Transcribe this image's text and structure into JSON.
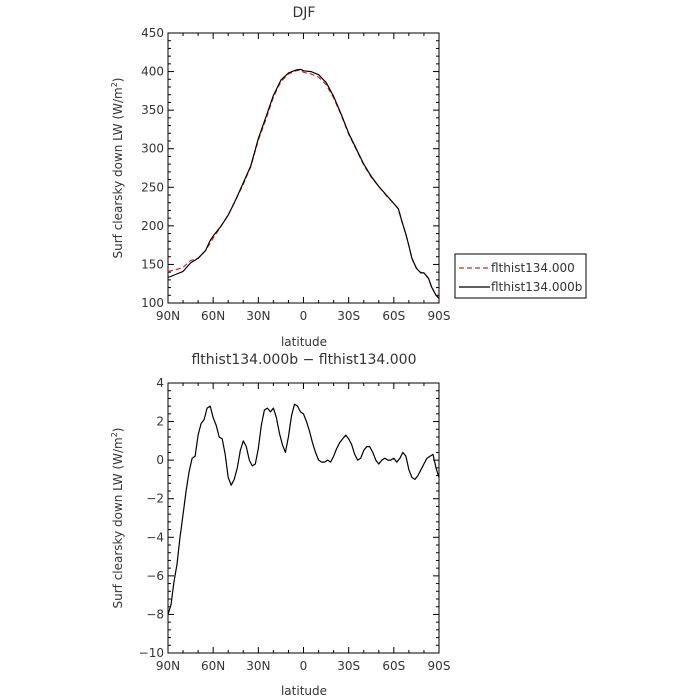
{
  "chart_data": [
    {
      "type": "line",
      "title": "DJF",
      "xlabel": "latitude",
      "ylabel": "Surf clearsky down LW (W/m²)",
      "ylabel_main": "Surf clearsky down LW (W/m",
      "ylabel_sup": "2",
      "ylabel_close": ")",
      "xlim": [
        90,
        -90
      ],
      "ylim": [
        100,
        450
      ],
      "x_ticks": [
        90,
        60,
        30,
        0,
        -30,
        -60,
        -90
      ],
      "x_tick_labels": [
        "90N",
        "60N",
        "30N",
        "0",
        "30S",
        "60S",
        "90S"
      ],
      "y_ticks": [
        100,
        150,
        200,
        250,
        300,
        350,
        400,
        450
      ],
      "y_tick_labels": [
        "100",
        "150",
        "200",
        "250",
        "300",
        "350",
        "400",
        "450"
      ],
      "legend_position": "right",
      "series": [
        {
          "name": "flthist134.000",
          "color": "#dd2222",
          "style": "dashed",
          "x": [
            90,
            85,
            80,
            75,
            70,
            65,
            62,
            60,
            55,
            50,
            45,
            40,
            35,
            30,
            25,
            20,
            15,
            10,
            5,
            2,
            0,
            -5,
            -10,
            -15,
            -20,
            -25,
            -30,
            -35,
            -40,
            -45,
            -50,
            -55,
            -60,
            -63,
            -65,
            -68,
            -70,
            -72,
            -75,
            -78,
            -80,
            -83,
            -85,
            -88,
            -90
          ],
          "y": [
            141,
            143,
            146,
            155,
            158,
            168,
            178,
            184,
            199,
            214,
            234,
            254,
            277,
            311,
            338,
            367,
            387,
            397,
            401,
            402,
            399,
            397,
            393,
            383,
            366,
            344,
            319,
            299,
            279,
            263,
            251,
            239,
            229,
            222,
            208,
            189,
            174,
            158,
            145,
            139,
            139,
            132,
            121,
            110,
            107
          ]
        },
        {
          "name": "flthist134.000b",
          "color": "#000000",
          "style": "solid",
          "x": [
            90,
            85,
            80,
            75,
            70,
            65,
            62,
            60,
            55,
            50,
            45,
            40,
            35,
            30,
            25,
            20,
            15,
            10,
            5,
            2,
            0,
            -5,
            -10,
            -15,
            -20,
            -25,
            -30,
            -35,
            -40,
            -45,
            -50,
            -55,
            -60,
            -63,
            -65,
            -68,
            -70,
            -72,
            -75,
            -78,
            -80,
            -83,
            -85,
            -88,
            -90
          ],
          "y": [
            133,
            137,
            141,
            152,
            158,
            168,
            181,
            187,
            199,
            214,
            234,
            256,
            278,
            313,
            341,
            369,
            389,
            398,
            402,
            403,
            401,
            400,
            396,
            386,
            368,
            345,
            320,
            300,
            280,
            264,
            251,
            240,
            229,
            222,
            208,
            189,
            174,
            158,
            145,
            139,
            139,
            132,
            121,
            110,
            106
          ]
        }
      ]
    },
    {
      "type": "line",
      "title": "flthist134.000b − flthist134.000",
      "xlabel": "latitude",
      "ylabel": "Surf clearsky down LW (W/m²)",
      "ylabel_main": "Surf clearsky down LW (W/m",
      "ylabel_sup": "2",
      "ylabel_close": ")",
      "xlim": [
        90,
        -90
      ],
      "ylim": [
        -10,
        4
      ],
      "x_ticks": [
        90,
        60,
        30,
        0,
        -30,
        -60,
        -90
      ],
      "x_tick_labels": [
        "90N",
        "60N",
        "30N",
        "0",
        "30S",
        "60S",
        "90S"
      ],
      "y_ticks": [
        -10,
        -8,
        -6,
        -4,
        -2,
        0,
        2,
        4
      ],
      "y_tick_labels": [
        "−10",
        "−8",
        "−6",
        "−4",
        "−2",
        "0",
        "2",
        "4"
      ],
      "series": [
        {
          "color": "#000000",
          "style": "solid",
          "x": [
            90,
            88,
            86,
            84,
            82,
            80,
            78,
            76,
            74,
            72,
            70,
            68,
            66,
            64,
            62,
            60,
            58,
            56,
            54,
            52,
            50,
            48,
            46,
            44,
            42,
            40,
            38,
            36,
            34,
            32,
            30,
            28,
            26,
            24,
            22,
            20,
            18,
            16,
            14,
            12,
            10,
            8,
            6,
            4,
            2,
            0,
            -2,
            -4,
            -6,
            -8,
            -10,
            -12,
            -14,
            -16,
            -18,
            -20,
            -22,
            -24,
            -26,
            -28,
            -30,
            -32,
            -34,
            -36,
            -38,
            -40,
            -42,
            -44,
            -46,
            -48,
            -50,
            -52,
            -54,
            -56,
            -58,
            -60,
            -62,
            -64,
            -66,
            -68,
            -70,
            -72,
            -74,
            -76,
            -78,
            -80,
            -82,
            -84,
            -86,
            -88,
            -90
          ],
          "y": [
            -8.0,
            -7.5,
            -6.3,
            -5.4,
            -4.0,
            -2.8,
            -1.6,
            -0.6,
            0.1,
            0.2,
            1.3,
            1.9,
            2.1,
            2.7,
            2.8,
            2.2,
            1.8,
            1.2,
            1.1,
            0.3,
            -0.9,
            -1.3,
            -1.0,
            -0.4,
            0.5,
            1.0,
            0.7,
            0.0,
            -0.3,
            -0.2,
            0.6,
            1.8,
            2.6,
            2.7,
            2.5,
            2.7,
            2.2,
            1.4,
            0.8,
            0.4,
            1.2,
            2.3,
            2.9,
            2.8,
            2.5,
            2.4,
            2.0,
            1.5,
            0.9,
            0.4,
            0.0,
            -0.1,
            -0.1,
            0.0,
            -0.1,
            0.2,
            0.6,
            0.9,
            1.1,
            1.3,
            1.1,
            0.8,
            0.3,
            0.0,
            0.1,
            0.5,
            0.7,
            0.7,
            0.4,
            0.0,
            -0.2,
            0.0,
            0.1,
            0.0,
            0.0,
            0.1,
            -0.1,
            0.1,
            0.4,
            0.2,
            -0.5,
            -0.9,
            -1.0,
            -0.8,
            -0.5,
            -0.2,
            0.1,
            0.2,
            0.3,
            -0.4,
            -0.9
          ]
        }
      ]
    }
  ]
}
